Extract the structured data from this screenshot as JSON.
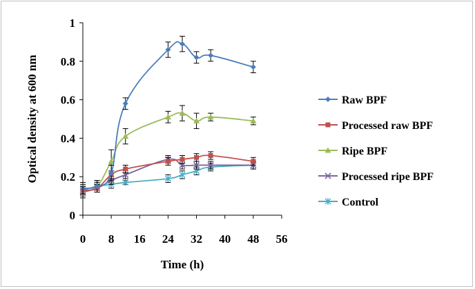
{
  "chart_data": {
    "type": "line",
    "xlabel": "Time (h)",
    "ylabel": "Optical density at 600 nm",
    "xlim": [
      0,
      56
    ],
    "ylim": [
      0,
      1
    ],
    "x_ticks": [
      "0",
      "8",
      "16",
      "24",
      "32",
      "40",
      "48",
      "56"
    ],
    "y_ticks": [
      "0",
      "0.2",
      "0.4",
      "0.6",
      "0.8",
      "1"
    ],
    "legend_position": "right",
    "grid": false,
    "series": [
      {
        "name": "Raw BPF",
        "color": "#4a7ebb",
        "marker": "diamond",
        "x": [
          0,
          4,
          8,
          12,
          24,
          28,
          32,
          36,
          48
        ],
        "y": [
          0.14,
          0.15,
          0.22,
          0.58,
          0.86,
          0.89,
          0.82,
          0.83,
          0.77
        ],
        "err": [
          0.03,
          0.03,
          0.04,
          0.03,
          0.04,
          0.04,
          0.03,
          0.03,
          0.03
        ]
      },
      {
        "name": "Processed raw BPF",
        "color": "#c0504d",
        "marker": "square",
        "x": [
          0,
          4,
          8,
          12,
          24,
          28,
          32,
          36,
          48
        ],
        "y": [
          0.13,
          0.14,
          0.21,
          0.24,
          0.28,
          0.29,
          0.3,
          0.31,
          0.28
        ],
        "err": [
          0.02,
          0.02,
          0.02,
          0.02,
          0.02,
          0.02,
          0.02,
          0.02,
          0.02
        ]
      },
      {
        "name": "Ripe BPF",
        "color": "#9bbb59",
        "marker": "triangle",
        "x": [
          0,
          4,
          8,
          12,
          24,
          28,
          32,
          36,
          48
        ],
        "y": [
          0.13,
          0.15,
          0.28,
          0.41,
          0.51,
          0.53,
          0.49,
          0.51,
          0.49
        ],
        "err": [
          0.03,
          0.03,
          0.06,
          0.04,
          0.03,
          0.04,
          0.04,
          0.02,
          0.02
        ]
      },
      {
        "name": "Processed ripe BPF",
        "color": "#7e649e",
        "marker": "x",
        "x": [
          0,
          4,
          8,
          12,
          24,
          28,
          32,
          36,
          48
        ],
        "y": [
          0.12,
          0.14,
          0.18,
          0.21,
          0.29,
          0.26,
          0.26,
          0.26,
          0.26
        ],
        "err": [
          0.03,
          0.02,
          0.02,
          0.02,
          0.02,
          0.02,
          0.02,
          0.02,
          0.02
        ]
      },
      {
        "name": "Control",
        "color": "#4bacc6",
        "marker": "asterisk",
        "x": [
          0,
          4,
          8,
          12,
          24,
          28,
          32,
          36,
          48
        ],
        "y": [
          0.13,
          0.15,
          0.16,
          0.17,
          0.19,
          0.21,
          0.23,
          0.25,
          0.26
        ],
        "err": [
          0.02,
          0.02,
          0.02,
          0.01,
          0.02,
          0.02,
          0.02,
          0.02,
          0.02
        ]
      }
    ]
  }
}
